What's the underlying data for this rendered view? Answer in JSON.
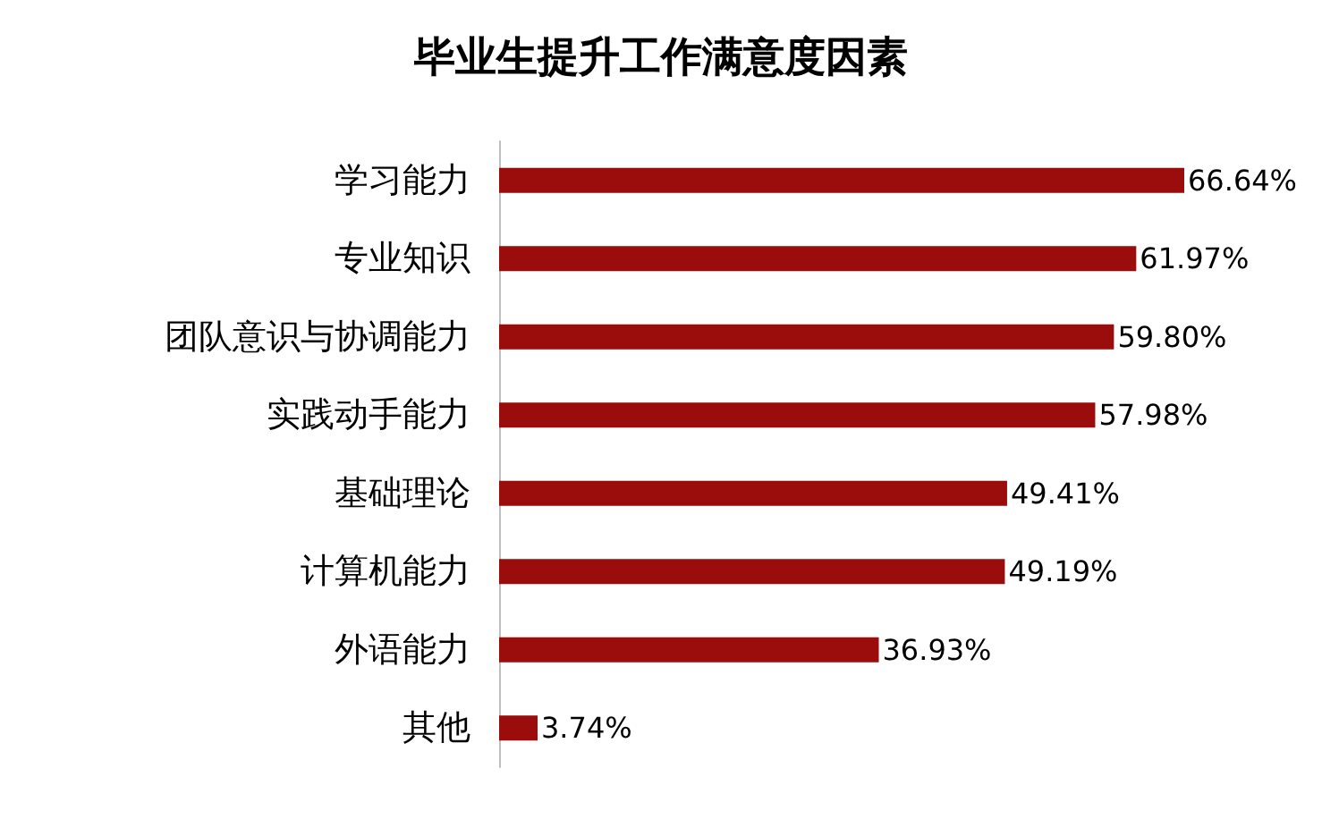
{
  "chart_data": {
    "type": "bar",
    "orientation": "horizontal",
    "title": "毕业生提升工作满意度因素",
    "categories": [
      "学习能力",
      "专业知识",
      "团队意识与协调能力",
      "实践动手能力",
      "基础理论",
      "计算机能力",
      "外语能力",
      "其他"
    ],
    "values": [
      66.64,
      61.97,
      59.8,
      57.98,
      49.41,
      49.19,
      36.93,
      3.74
    ],
    "value_labels": [
      "66.64%",
      "61.97%",
      "59.80%",
      "57.98%",
      "49.41%",
      "49.19%",
      "36.93%",
      "3.74%"
    ],
    "color": "#9b0c0c"
  }
}
